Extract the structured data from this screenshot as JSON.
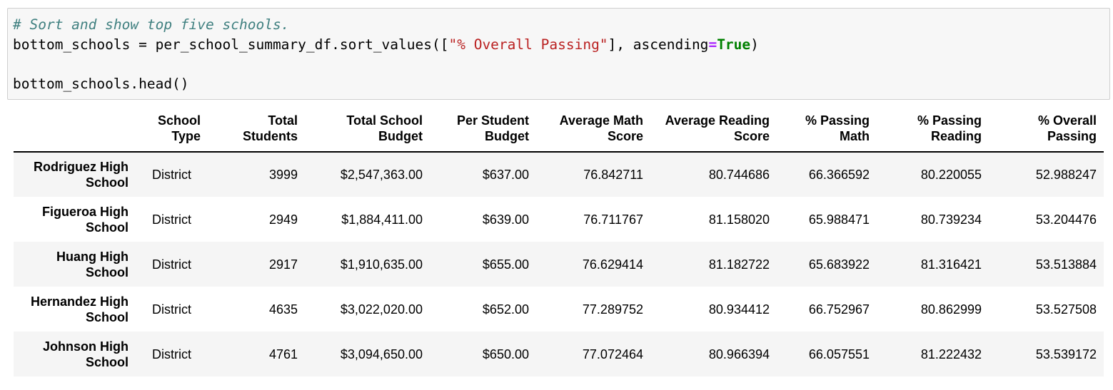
{
  "code": {
    "comment": "# Sort and show top five schools.",
    "line2": {
      "prefix": "bottom_schools = per_school_summary_df.sort_values([",
      "string": "\"% Overall Passing\"",
      "middle": "], ascending",
      "op": "=",
      "keyword": "True",
      "suffix": ")"
    },
    "line4": "bottom_schools.head()"
  },
  "table": {
    "headers": [
      {
        "l1": "",
        "l2": ""
      },
      {
        "l1": "School",
        "l2": "Type"
      },
      {
        "l1": "Total",
        "l2": "Students"
      },
      {
        "l1": "Total School",
        "l2": "Budget"
      },
      {
        "l1": "Per Student",
        "l2": "Budget"
      },
      {
        "l1": "Average Math",
        "l2": "Score"
      },
      {
        "l1": "Average Reading",
        "l2": "Score"
      },
      {
        "l1": "% Passing",
        "l2": "Math"
      },
      {
        "l1": "% Passing",
        "l2": "Reading"
      },
      {
        "l1": "% Overall",
        "l2": "Passing"
      }
    ],
    "rows": [
      {
        "name_l1": "Rodriguez High",
        "name_l2": "School",
        "type": "District",
        "students": "3999",
        "budget": "$2,547,363.00",
        "per_student": "$637.00",
        "math": "76.842711",
        "reading": "80.744686",
        "pass_math": "66.366592",
        "pass_reading": "80.220055",
        "overall": "52.988247"
      },
      {
        "name_l1": "Figueroa High",
        "name_l2": "School",
        "type": "District",
        "students": "2949",
        "budget": "$1,884,411.00",
        "per_student": "$639.00",
        "math": "76.711767",
        "reading": "81.158020",
        "pass_math": "65.988471",
        "pass_reading": "80.739234",
        "overall": "53.204476"
      },
      {
        "name_l1": "Huang High",
        "name_l2": "School",
        "type": "District",
        "students": "2917",
        "budget": "$1,910,635.00",
        "per_student": "$655.00",
        "math": "76.629414",
        "reading": "81.182722",
        "pass_math": "65.683922",
        "pass_reading": "81.316421",
        "overall": "53.513884"
      },
      {
        "name_l1": "Hernandez High",
        "name_l2": "School",
        "type": "District",
        "students": "4635",
        "budget": "$3,022,020.00",
        "per_student": "$652.00",
        "math": "77.289752",
        "reading": "80.934412",
        "pass_math": "66.752967",
        "pass_reading": "80.862999",
        "overall": "53.527508"
      },
      {
        "name_l1": "Johnson High",
        "name_l2": "School",
        "type": "District",
        "students": "4761",
        "budget": "$3,094,650.00",
        "per_student": "$650.00",
        "math": "77.072464",
        "reading": "80.966394",
        "pass_math": "66.057551",
        "pass_reading": "81.222432",
        "overall": "53.539172"
      }
    ]
  },
  "colors": {
    "comment": "#408080",
    "string": "#ba2121",
    "operator": "#aa22ff",
    "keyword": "#008000",
    "cell_background": "#f7f7f7",
    "striped_row": "#f5f5f5"
  }
}
